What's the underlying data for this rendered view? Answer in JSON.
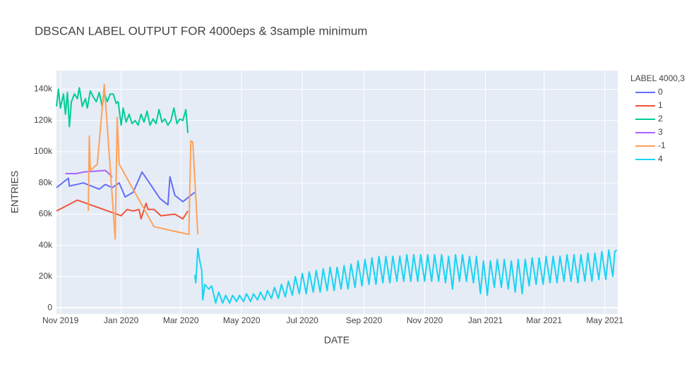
{
  "chart_data": {
    "type": "line",
    "title": "DBSCAN LABEL OUTPUT FOR 4000eps & 3sample minimum",
    "x_label": "DATE",
    "y_label": "ENTRIES",
    "legend_title": "LABEL 4000,3",
    "grid": true,
    "legend_position": "right",
    "xlim": [
      "2019-10-28",
      "2021-05-14"
    ],
    "xticks": [
      {
        "value": "2019-11-01",
        "label": "Nov 2019"
      },
      {
        "value": "2020-01-01",
        "label": "Jan 2020"
      },
      {
        "value": "2020-03-01",
        "label": "Mar 2020"
      },
      {
        "value": "2020-05-01",
        "label": "May 2020"
      },
      {
        "value": "2020-07-01",
        "label": "Jul 2020"
      },
      {
        "value": "2020-09-01",
        "label": "Sep 2020"
      },
      {
        "value": "2020-11-01",
        "label": "Nov 2020"
      },
      {
        "value": "2021-01-01",
        "label": "Jan 2021"
      },
      {
        "value": "2021-03-01",
        "label": "Mar 2021"
      },
      {
        "value": "2021-05-01",
        "label": "May 2021"
      }
    ],
    "ylim": [
      -4000,
      152000
    ],
    "yticks": [
      0,
      {
        "value": 20000,
        "label": "20k"
      },
      {
        "value": 40000,
        "label": "40k"
      },
      {
        "value": 60000,
        "label": "60k"
      },
      {
        "value": 80000,
        "label": "80k"
      },
      {
        "value": 100000,
        "label": "100k"
      },
      {
        "value": 120000,
        "label": "120k"
      },
      {
        "value": 140000,
        "label": "140k"
      }
    ],
    "series": [
      {
        "name": "0",
        "color": "#636efa",
        "x": [
          "2019-10-28",
          "2019-11-09",
          "2019-11-10",
          "2019-11-24",
          "2019-12-10",
          "2019-12-16",
          "2019-12-23",
          "2019-12-30",
          "2020-01-05",
          "2020-01-13",
          "2020-01-22",
          "2020-02-09",
          "2020-02-17",
          "2020-02-19",
          "2020-02-24",
          "2020-03-03",
          "2020-03-15"
        ],
        "values": [
          77000,
          83000,
          78000,
          80000,
          76000,
          79000,
          77000,
          80000,
          71000,
          74000,
          87000,
          70000,
          66000,
          84000,
          72000,
          68000,
          74000
        ]
      },
      {
        "name": "1",
        "color": "#EF553B",
        "x": [
          "2019-10-28",
          "2019-11-18",
          "2020-01-01",
          "2020-01-07",
          "2020-01-13",
          "2020-01-19",
          "2020-01-21",
          "2020-01-26",
          "2020-01-28",
          "2020-02-03",
          "2020-02-10",
          "2020-02-24",
          "2020-03-03",
          "2020-03-08"
        ],
        "values": [
          62000,
          69000,
          59000,
          63000,
          62000,
          63000,
          57000,
          67000,
          63000,
          63000,
          59000,
          60000,
          57000,
          62000
        ]
      },
      {
        "name": "2",
        "color": "#00cc96",
        "x": [
          "2019-10-28",
          "2019-10-30",
          "2019-11-01",
          "2019-11-04",
          "2019-11-06",
          "2019-11-08",
          "2019-11-10",
          "2019-11-12",
          "2019-11-15",
          "2019-11-18",
          "2019-11-20",
          "2019-11-23",
          "2019-11-26",
          "2019-11-28",
          "2019-12-01",
          "2019-12-04",
          "2019-12-07",
          "2019-12-10",
          "2019-12-13",
          "2019-12-15",
          "2019-12-18",
          "2019-12-21",
          "2019-12-24",
          "2019-12-27",
          "2019-12-29",
          "2020-01-01",
          "2020-01-03",
          "2020-01-06",
          "2020-01-09",
          "2020-01-12",
          "2020-01-15",
          "2020-01-18",
          "2020-01-21",
          "2020-01-24",
          "2020-01-27",
          "2020-01-30",
          "2020-02-02",
          "2020-02-05",
          "2020-02-08",
          "2020-02-11",
          "2020-02-14",
          "2020-02-17",
          "2020-02-20",
          "2020-02-23",
          "2020-02-26",
          "2020-02-29",
          "2020-03-03",
          "2020-03-06",
          "2020-03-08"
        ],
        "values": [
          129000,
          140000,
          128000,
          137000,
          124000,
          138000,
          116000,
          132000,
          137000,
          134000,
          141000,
          129000,
          134000,
          128000,
          139000,
          135000,
          132000,
          138000,
          129000,
          138000,
          132000,
          137000,
          137000,
          131000,
          132000,
          117000,
          128000,
          119000,
          124000,
          118000,
          120000,
          117000,
          124000,
          119000,
          126000,
          117000,
          121000,
          118000,
          127000,
          119000,
          121000,
          117000,
          120000,
          128000,
          118000,
          121000,
          120000,
          127000,
          112000
        ]
      },
      {
        "name": "3",
        "color": "#ab63fa",
        "x": [
          "2019-11-06",
          "2019-11-17",
          "2019-11-24",
          "2019-12-16",
          "2019-12-23"
        ],
        "values": [
          86000,
          86000,
          87000,
          88000,
          84000
        ]
      },
      {
        "name": "-1",
        "color": "#FFA15A",
        "x": [
          "2019-11-29",
          "2019-11-30",
          "2019-12-01",
          "2019-12-08",
          "2019-12-15",
          "2019-12-26",
          "2019-12-28",
          "2019-12-30",
          "2020-02-03",
          "2020-03-09",
          "2020-03-11",
          "2020-03-13",
          "2020-03-18"
        ],
        "values": [
          62000,
          110000,
          88000,
          92000,
          143000,
          44000,
          122000,
          92000,
          52000,
          47000,
          107000,
          106000,
          47000
        ]
      },
      {
        "name": "4",
        "color": "#19d3f3",
        "x": [
          "2020-03-15",
          "2020-03-16",
          "2020-03-18",
          "2020-03-20",
          "2020-03-22",
          "2020-03-23",
          "2020-03-25",
          "2020-03-29",
          "2020-04-01",
          "2020-04-05",
          "2020-04-08",
          "2020-04-12",
          "2020-04-15",
          "2020-04-19",
          "2020-04-22",
          "2020-04-26",
          "2020-04-29",
          "2020-05-03",
          "2020-05-06",
          "2020-05-10",
          "2020-05-13",
          "2020-05-17",
          "2020-05-20",
          "2020-05-24",
          "2020-05-27",
          "2020-05-31",
          "2020-06-03",
          "2020-06-07",
          "2020-06-10",
          "2020-06-14",
          "2020-06-17",
          "2020-06-21",
          "2020-06-24",
          "2020-06-28",
          "2020-07-01",
          "2020-07-05",
          "2020-07-08",
          "2020-07-12",
          "2020-07-15",
          "2020-07-19",
          "2020-07-22",
          "2020-07-26",
          "2020-07-29",
          "2020-08-02",
          "2020-08-05",
          "2020-08-09",
          "2020-08-12",
          "2020-08-16",
          "2020-08-19",
          "2020-08-23",
          "2020-08-26",
          "2020-08-30",
          "2020-09-02",
          "2020-09-06",
          "2020-09-09",
          "2020-09-13",
          "2020-09-16",
          "2020-09-20",
          "2020-09-23",
          "2020-09-27",
          "2020-09-30",
          "2020-10-04",
          "2020-10-07",
          "2020-10-11",
          "2020-10-14",
          "2020-10-18",
          "2020-10-21",
          "2020-10-25",
          "2020-10-28",
          "2020-11-01",
          "2020-11-04",
          "2020-11-08",
          "2020-11-11",
          "2020-11-15",
          "2020-11-18",
          "2020-11-22",
          "2020-11-25",
          "2020-11-29",
          "2020-12-02",
          "2020-12-06",
          "2020-12-09",
          "2020-12-13",
          "2020-12-16",
          "2020-12-20",
          "2020-12-23",
          "2020-12-27",
          "2020-12-30",
          "2021-01-03",
          "2021-01-06",
          "2021-01-10",
          "2021-01-13",
          "2021-01-17",
          "2021-01-20",
          "2021-01-24",
          "2021-01-27",
          "2021-01-31",
          "2021-02-03",
          "2021-02-07",
          "2021-02-10",
          "2021-02-14",
          "2021-02-17",
          "2021-02-21",
          "2021-02-24",
          "2021-02-28",
          "2021-03-03",
          "2021-03-07",
          "2021-03-10",
          "2021-03-14",
          "2021-03-17",
          "2021-03-21",
          "2021-03-24",
          "2021-03-28",
          "2021-03-31",
          "2021-04-04",
          "2021-04-07",
          "2021-04-11",
          "2021-04-14",
          "2021-04-18",
          "2021-04-21",
          "2021-04-25",
          "2021-04-28",
          "2021-05-02",
          "2021-05-05",
          "2021-05-09",
          "2021-05-11",
          "2021-05-13"
        ],
        "values": [
          21000,
          16000,
          38000,
          30000,
          24000,
          5000,
          15000,
          12000,
          14000,
          3000,
          10000,
          3000,
          8000,
          3000,
          8000,
          4000,
          8000,
          4000,
          9000,
          4000,
          9000,
          5000,
          10000,
          5000,
          11000,
          6000,
          13000,
          6000,
          15000,
          7000,
          17000,
          8000,
          20000,
          9000,
          22000,
          9000,
          23000,
          10000,
          24000,
          10000,
          25000,
          11000,
          26000,
          11000,
          26000,
          12000,
          27000,
          12000,
          28000,
          13000,
          30000,
          14000,
          31000,
          15000,
          32000,
          15000,
          33000,
          16000,
          33000,
          16000,
          33000,
          17000,
          33000,
          17000,
          34000,
          17000,
          34000,
          17000,
          34000,
          17000,
          34000,
          17000,
          34000,
          17000,
          34000,
          16000,
          33000,
          12000,
          34000,
          17000,
          34000,
          17000,
          33000,
          16000,
          33000,
          9000,
          30000,
          8000,
          30000,
          13000,
          31000,
          13000,
          31000,
          12000,
          30000,
          10000,
          31000,
          9000,
          31000,
          14000,
          32000,
          15000,
          32000,
          15000,
          33000,
          16000,
          33000,
          16000,
          33000,
          17000,
          34000,
          17000,
          34000,
          16000,
          34000,
          17000,
          35000,
          17000,
          35000,
          18000,
          36000,
          18000,
          37000,
          20000,
          36000,
          37000
        ]
      }
    ]
  }
}
